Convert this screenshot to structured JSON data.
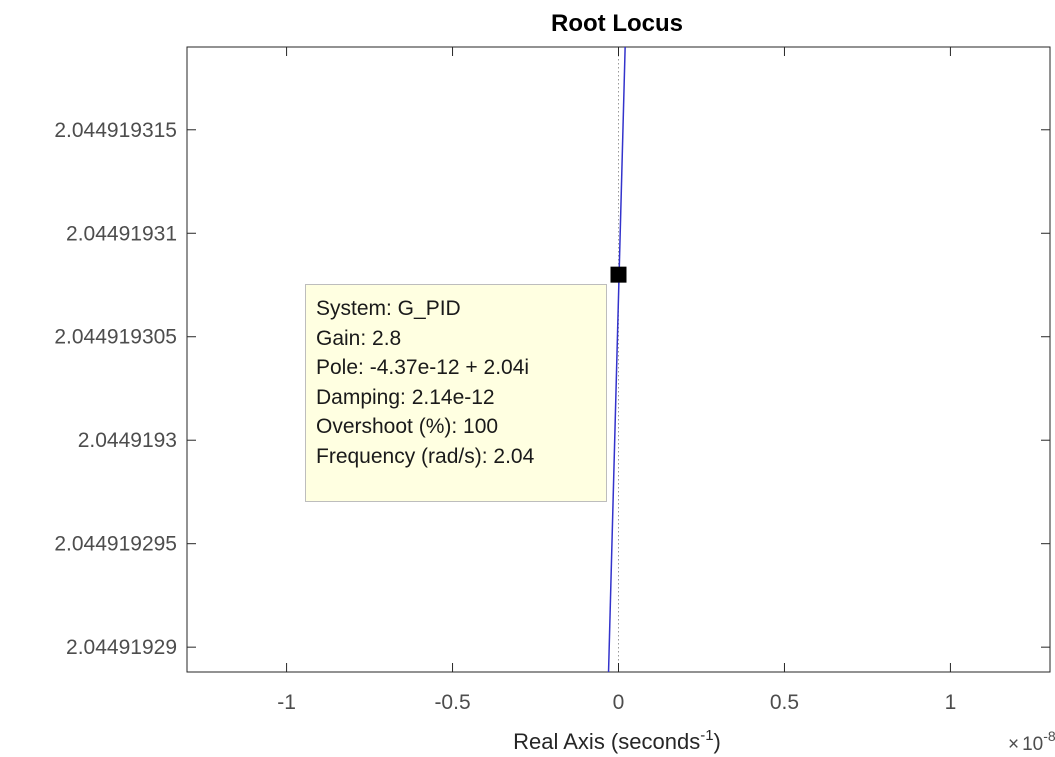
{
  "chart_data": {
    "type": "line",
    "title": "Root Locus",
    "xlabel": "Real Axis (seconds",
    "xlabel_sup": "-1",
    "xlabel_close": ")",
    "ylabel": "",
    "x_multiplier": "×",
    "x_multiplier_base": "10",
    "x_multiplier_exp": "-8",
    "xlim": [
      -1.3,
      1.3
    ],
    "ylim": [
      2.0449192888,
      2.044919319
    ],
    "xticks": [
      -1,
      -0.5,
      0,
      0.5,
      1
    ],
    "xtick_labels": [
      "-1",
      "-0.5",
      "0",
      "0.5",
      "1"
    ],
    "yticks": [
      2.04491929,
      2.044919295,
      2.0449193,
      2.044919305,
      2.04491931,
      2.044919315
    ],
    "ytick_labels": [
      "2.04491929",
      "2.044919295",
      "2.0449193",
      "2.044919305",
      "2.04491931",
      "2.044919315"
    ],
    "grid": false,
    "series": [
      {
        "color": "#3333cc",
        "x": [
          -0.03,
          0.02
        ],
        "y": [
          2.0449192888,
          2.044919319
        ]
      }
    ],
    "reference_line": {
      "color": "#9a9a9a",
      "x": 0.0
    },
    "marker": {
      "x": 0.0,
      "y": 2.044919308
    },
    "datatip": {
      "lines": [
        "System: G_PID",
        "Gain: 2.8",
        "Pole: -4.37e-12 + 2.04i",
        "Damping: 2.14e-12",
        "Overshoot (%): 100",
        "Frequency (rad/s): 2.04"
      ]
    }
  }
}
